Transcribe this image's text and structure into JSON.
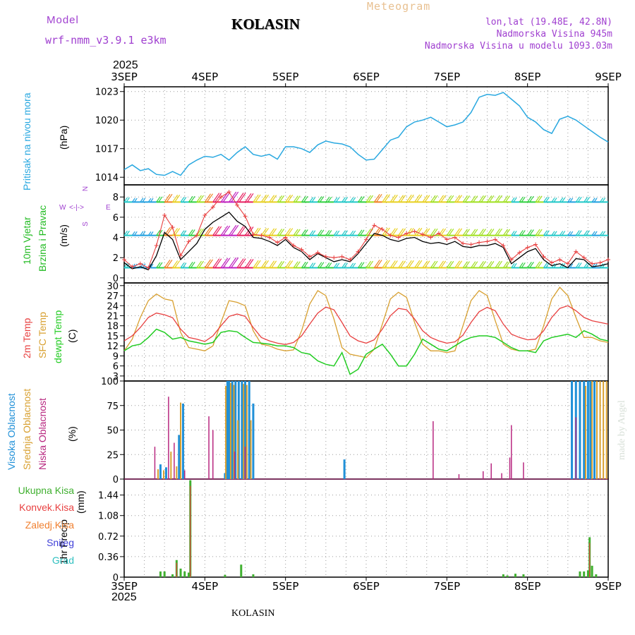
{
  "header": {
    "model_label": "Model",
    "model_name": "wrf-nmm_v3.9.1 e3km",
    "station": "KOLASIN",
    "meteogram": "Meteogram",
    "lonlat": "lon,lat (19.48E, 42.8N)",
    "elevation": "Nadmorska Visina 945m",
    "model_elevation": "Nadmorska Visina u modelu 1093.03m",
    "year_top": "2025",
    "year_bottom": "2025",
    "footer_station": "KOLASIN",
    "credit": "made by Angel"
  },
  "colors": {
    "pressure": "#29a8e0",
    "wind_label_green": "#22bb22",
    "t2m": "#e84040",
    "tsfc": "#d8a030",
    "dewpt": "#22cc22",
    "cloud_high": "#2090d8",
    "cloud_mid": "#d8a030",
    "cloud_low": "#b82880",
    "precip_total": "#40b030",
    "precip_conv": "#e84040",
    "precip_frz": "#f08030",
    "snow": "#4040d8",
    "grad": "#30c0c0",
    "compass": "#a040d0"
  },
  "chart_data": [
    {
      "type": "line",
      "id": "pressure",
      "ylabel_left": "Pritisak na nivou mora",
      "unit": "(hPa)",
      "ylim": [
        1013.2,
        1023.5
      ],
      "yticks": [
        "1014",
        "1017",
        "1020",
        "1023"
      ],
      "x": [
        0,
        0.1,
        0.2,
        0.3,
        0.4,
        0.5,
        0.6,
        0.7,
        0.8,
        0.9,
        1.0,
        1.1,
        1.2,
        1.3,
        1.4,
        1.5,
        1.6,
        1.7,
        1.8,
        1.9,
        2.0,
        2.1,
        2.2,
        2.3,
        2.4,
        2.5,
        2.6,
        2.7,
        2.8,
        2.9,
        3.0,
        3.1,
        3.2,
        3.3,
        3.4,
        3.5,
        3.6,
        3.7,
        3.8,
        3.9,
        4.0,
        4.1,
        4.2,
        4.3,
        4.4,
        4.5,
        4.6,
        4.7,
        4.8,
        4.9,
        5.0,
        5.1,
        5.2,
        5.3,
        5.4,
        5.5,
        5.6,
        5.7,
        5.8,
        5.9,
        6.0
      ],
      "values": [
        1014.8,
        1015.3,
        1014.7,
        1014.9,
        1014.3,
        1014.2,
        1014.6,
        1014.2,
        1015.3,
        1015.8,
        1016.2,
        1016.1,
        1016.4,
        1015.8,
        1016.6,
        1017.2,
        1016.4,
        1016.2,
        1016.4,
        1015.9,
        1017.2,
        1017.2,
        1017.0,
        1016.6,
        1017.4,
        1017.8,
        1017.6,
        1017.5,
        1017.2,
        1016.4,
        1015.8,
        1015.9,
        1016.9,
        1017.9,
        1018.2,
        1019.3,
        1019.8,
        1020.0,
        1020.3,
        1019.8,
        1019.3,
        1019.5,
        1019.8,
        1020.8,
        1022.4,
        1022.7,
        1022.6,
        1022.9,
        1022.2,
        1021.5,
        1020.3,
        1019.8,
        1019.0,
        1018.6,
        1020.1,
        1020.4,
        1020.0,
        1019.4,
        1018.8,
        1018.2,
        1017.7
      ],
      "series_name": "Pritisak na nivou mora"
    },
    {
      "type": "line",
      "id": "wind",
      "ylabel_left": "10m Vjetar",
      "ylabel_left2": "Brzina i Pravac",
      "unit": "(m/s)",
      "ylim": [
        -0.5,
        9.2
      ],
      "yticks": [
        "0",
        "2",
        "4",
        "6",
        "8"
      ],
      "compass": {
        "n": "N",
        "w": "W",
        "e": "E",
        "s": "S",
        "arrows": "<-|->"
      },
      "x": [
        0,
        0.1,
        0.2,
        0.3,
        0.4,
        0.5,
        0.6,
        0.7,
        0.8,
        0.9,
        1.0,
        1.1,
        1.2,
        1.3,
        1.4,
        1.5,
        1.6,
        1.7,
        1.8,
        1.9,
        2.0,
        2.1,
        2.2,
        2.3,
        2.4,
        2.5,
        2.6,
        2.7,
        2.8,
        2.9,
        3.0,
        3.1,
        3.2,
        3.3,
        3.4,
        3.5,
        3.6,
        3.7,
        3.8,
        3.9,
        4.0,
        4.1,
        4.2,
        4.3,
        4.4,
        4.5,
        4.6,
        4.7,
        4.8,
        4.9,
        5.0,
        5.1,
        5.2,
        5.3,
        5.4,
        5.5,
        5.6,
        5.7,
        5.8,
        5.9,
        6.0
      ],
      "speed": [
        1.5,
        0.9,
        1.1,
        0.8,
        2.2,
        4.5,
        3.8,
        1.8,
        2.6,
        3.4,
        4.8,
        5.5,
        6.0,
        6.5,
        5.6,
        5.1,
        4.0,
        3.9,
        3.6,
        3.2,
        3.8,
        3.0,
        2.6,
        1.8,
        2.4,
        2.0,
        1.6,
        1.8,
        1.6,
        2.4,
        3.4,
        4.4,
        4.2,
        3.8,
        3.6,
        3.9,
        4.0,
        3.6,
        3.4,
        3.5,
        3.3,
        3.6,
        3.1,
        3.0,
        3.2,
        3.2,
        3.4,
        3.0,
        1.4,
        2.0,
        2.6,
        2.9,
        1.8,
        1.2,
        1.4,
        1.0,
        1.9,
        1.8,
        1.1,
        1.2,
        1.4
      ],
      "gust": [
        1.8,
        1.1,
        1.4,
        1.0,
        3.2,
        6.2,
        5.0,
        2.2,
        3.6,
        4.2,
        6.2,
        7.0,
        8.0,
        8.5,
        7.2,
        6.1,
        4.3,
        4.2,
        4.0,
        3.5,
        4.0,
        3.2,
        2.8,
        2.1,
        2.5,
        2.1,
        2.0,
        2.1,
        1.8,
        2.6,
        3.8,
        5.2,
        4.8,
        4.2,
        4.0,
        4.4,
        4.6,
        4.3,
        4.0,
        4.4,
        3.8,
        4.0,
        3.4,
        3.3,
        3.5,
        3.6,
        3.8,
        3.2,
        1.8,
        2.5,
        3.0,
        3.3,
        2.1,
        1.5,
        1.8,
        1.4,
        2.6,
        2.0,
        1.4,
        1.5,
        1.8
      ],
      "barb_rows": [
        1.0,
        4.2,
        7.5
      ],
      "series": [
        {
          "name": "speed"
        },
        {
          "name": "gust"
        }
      ]
    },
    {
      "type": "line",
      "id": "temperature",
      "ylabel_left": "2m Temp",
      "ylabel_left2": "SFC Temp",
      "ylabel_left3": "dewpt Temp",
      "unit": "(C)",
      "ylim": [
        1.5,
        30.8
      ],
      "yticks": [
        "3",
        "6",
        "9",
        "12",
        "15",
        "18",
        "21",
        "24",
        "27",
        "30"
      ],
      "x": [
        0,
        0.1,
        0.2,
        0.3,
        0.4,
        0.5,
        0.6,
        0.7,
        0.8,
        0.9,
        1.0,
        1.1,
        1.2,
        1.3,
        1.4,
        1.5,
        1.6,
        1.7,
        1.8,
        1.9,
        2.0,
        2.1,
        2.2,
        2.3,
        2.4,
        2.5,
        2.6,
        2.7,
        2.8,
        2.9,
        3.0,
        3.1,
        3.2,
        3.3,
        3.4,
        3.5,
        3.6,
        3.7,
        3.8,
        3.9,
        4.0,
        4.1,
        4.2,
        4.3,
        4.4,
        4.5,
        4.6,
        4.7,
        4.8,
        4.9,
        5.0,
        5.1,
        5.2,
        5.3,
        5.4,
        5.5,
        5.6,
        5.7,
        5.8,
        5.9,
        6.0
      ],
      "t2m": [
        13.5,
        15.0,
        17.5,
        20.5,
        21.8,
        21.3,
        20.4,
        17.0,
        14.5,
        14.0,
        13.3,
        15.0,
        18.0,
        20.8,
        21.5,
        20.8,
        17.5,
        14.5,
        13.5,
        12.8,
        12.4,
        13.0,
        15.0,
        18.5,
        21.8,
        23.6,
        22.8,
        19.0,
        15.0,
        13.5,
        12.8,
        13.8,
        17.0,
        21.0,
        23.2,
        22.8,
        20.0,
        16.5,
        14.5,
        13.5,
        12.8,
        13.2,
        15.2,
        19.0,
        22.2,
        23.5,
        22.5,
        18.5,
        15.5,
        14.5,
        13.8,
        14.0,
        16.5,
        20.5,
        23.2,
        24.0,
        22.5,
        20.5,
        19.5,
        19.0,
        18.5
      ],
      "tsfc": [
        10.5,
        14.0,
        20.5,
        25.5,
        27.5,
        26.0,
        25.5,
        16.0,
        11.5,
        11.0,
        10.5,
        12.0,
        19.0,
        25.5,
        25.0,
        24.0,
        16.5,
        12.5,
        12.0,
        11.0,
        10.5,
        10.8,
        16.5,
        24.5,
        28.5,
        27.0,
        20.0,
        11.5,
        9.5,
        9.0,
        8.5,
        11.0,
        18.5,
        26.0,
        28.0,
        26.5,
        19.0,
        12.5,
        10.5,
        10.5,
        10.0,
        10.5,
        18.0,
        25.5,
        28.5,
        27.0,
        19.5,
        12.5,
        11.0,
        10.5,
        10.5,
        11.0,
        18.0,
        26.0,
        29.5,
        27.0,
        20.5,
        14.5,
        14.5,
        13.5,
        13.0
      ],
      "dewpt": [
        10.5,
        12.0,
        12.5,
        14.5,
        17.0,
        16.0,
        14.0,
        14.5,
        13.5,
        13.0,
        12.5,
        13.0,
        16.0,
        16.5,
        16.2,
        14.5,
        13.0,
        12.8,
        12.5,
        12.0,
        12.0,
        11.5,
        10.0,
        9.5,
        7.5,
        6.5,
        6.0,
        10.0,
        3.5,
        5.0,
        9.5,
        11.0,
        12.5,
        9.5,
        6.0,
        6.0,
        9.5,
        14.0,
        12.5,
        11.0,
        10.5,
        12.0,
        13.5,
        14.5,
        15.0,
        15.0,
        14.5,
        13.0,
        11.5,
        10.5,
        10.5,
        10.0,
        13.5,
        14.5,
        15.0,
        15.5,
        14.5,
        16.5,
        15.5,
        14.0,
        13.5
      ],
      "series": [
        {
          "name": "2m Temp"
        },
        {
          "name": "SFC Temp"
        },
        {
          "name": "dewpt Temp"
        }
      ]
    },
    {
      "type": "bar",
      "id": "clouds",
      "ylabel_left": "Visoka Oblacnost",
      "ylabel_left2": "Srednja Oblacnost",
      "ylabel_left3": "Niska Oblacnost",
      "unit": "(%)",
      "ylim": [
        0,
        100
      ],
      "yticks": [
        "0",
        "25",
        "50",
        "75",
        "100"
      ],
      "high": [
        [
          0.45,
          15
        ],
        [
          0.52,
          12
        ],
        [
          0.68,
          45
        ],
        [
          0.73,
          77
        ],
        [
          1.25,
          6
        ],
        [
          1.28,
          100
        ],
        [
          1.3,
          100
        ],
        [
          1.34,
          100
        ],
        [
          1.38,
          100
        ],
        [
          1.42,
          100
        ],
        [
          1.46,
          100
        ],
        [
          1.5,
          100
        ],
        [
          1.55,
          100
        ],
        [
          1.6,
          77
        ],
        [
          2.73,
          20
        ],
        [
          5.55,
          100
        ],
        [
          5.6,
          100
        ],
        [
          5.65,
          100
        ],
        [
          5.7,
          100
        ],
        [
          5.75,
          100
        ],
        [
          5.78,
          100
        ],
        [
          5.83,
          100
        ]
      ],
      "mid": [
        [
          0.42,
          10
        ],
        [
          0.49,
          9
        ],
        [
          0.58,
          28
        ],
        [
          0.65,
          13
        ],
        [
          0.7,
          78
        ],
        [
          1.26,
          95
        ],
        [
          1.32,
          98
        ],
        [
          1.36,
          96
        ],
        [
          1.41,
          60
        ],
        [
          1.48,
          97
        ],
        [
          1.52,
          96
        ],
        [
          1.57,
          60
        ],
        [
          5.72,
          95
        ],
        [
          5.8,
          100
        ],
        [
          5.86,
          100
        ],
        [
          5.9,
          100
        ],
        [
          5.94,
          100
        ],
        [
          5.98,
          100
        ]
      ],
      "low": [
        [
          0.38,
          33
        ],
        [
          0.55,
          84
        ],
        [
          0.62,
          37
        ],
        [
          0.75,
          9
        ],
        [
          1.05,
          64
        ],
        [
          1.1,
          50
        ],
        [
          1.37,
          28
        ],
        [
          1.5,
          33
        ],
        [
          3.83,
          59
        ],
        [
          4.15,
          5
        ],
        [
          4.45,
          8
        ],
        [
          4.55,
          16
        ],
        [
          4.68,
          6
        ],
        [
          4.78,
          22
        ],
        [
          4.8,
          55
        ],
        [
          4.95,
          17
        ],
        [
          5.6,
          63
        ]
      ],
      "series": [
        {
          "name": "Visoka Oblacnost"
        },
        {
          "name": "Srednja Oblacnost"
        },
        {
          "name": "Niska Oblacnost"
        }
      ]
    },
    {
      "type": "bar",
      "id": "precip",
      "ylabel_left": "1hr Precip",
      "unit": "(mm)",
      "ylim": [
        0,
        1.72
      ],
      "yticks": [
        "0",
        "0.36",
        "0.72",
        "1.08",
        "1.44"
      ],
      "legend": [
        "Ukupna Kisa",
        "Konvek.Kisa",
        "Zaledj.Kisa",
        "Snijeg",
        "Grad"
      ],
      "total": [
        [
          0.45,
          0.1
        ],
        [
          0.5,
          0.1
        ],
        [
          0.6,
          0.05
        ],
        [
          0.65,
          0.3
        ],
        [
          0.7,
          0.15
        ],
        [
          0.75,
          0.1
        ],
        [
          0.8,
          0.08
        ],
        [
          0.82,
          1.7
        ],
        [
          1.25,
          0.04
        ],
        [
          1.45,
          0.22
        ],
        [
          1.6,
          0.05
        ],
        [
          4.7,
          0.05
        ],
        [
          4.75,
          0.03
        ],
        [
          4.85,
          0.06
        ],
        [
          4.95,
          0.05
        ],
        [
          5.65,
          0.1
        ],
        [
          5.7,
          0.1
        ],
        [
          5.75,
          0.12
        ],
        [
          5.77,
          0.7
        ],
        [
          5.8,
          0.2
        ],
        [
          5.85,
          0.05
        ]
      ],
      "conv": [
        [
          0.82,
          1.6
        ],
        [
          0.65,
          0.25
        ],
        [
          5.77,
          0.6
        ]
      ],
      "series": [
        {
          "name": "Ukupna Kisa"
        },
        {
          "name": "Konvek.Kisa"
        }
      ]
    }
  ],
  "x_axis": {
    "top_labels": [
      "3SEP",
      "4SEP",
      "5SEP",
      "6SEP",
      "7SEP",
      "8SEP",
      "9SEP"
    ],
    "bottom_labels": [
      "3SEP",
      "4SEP",
      "5SEP",
      "6SEP",
      "7SEP",
      "8SEP",
      "9SEP"
    ]
  }
}
